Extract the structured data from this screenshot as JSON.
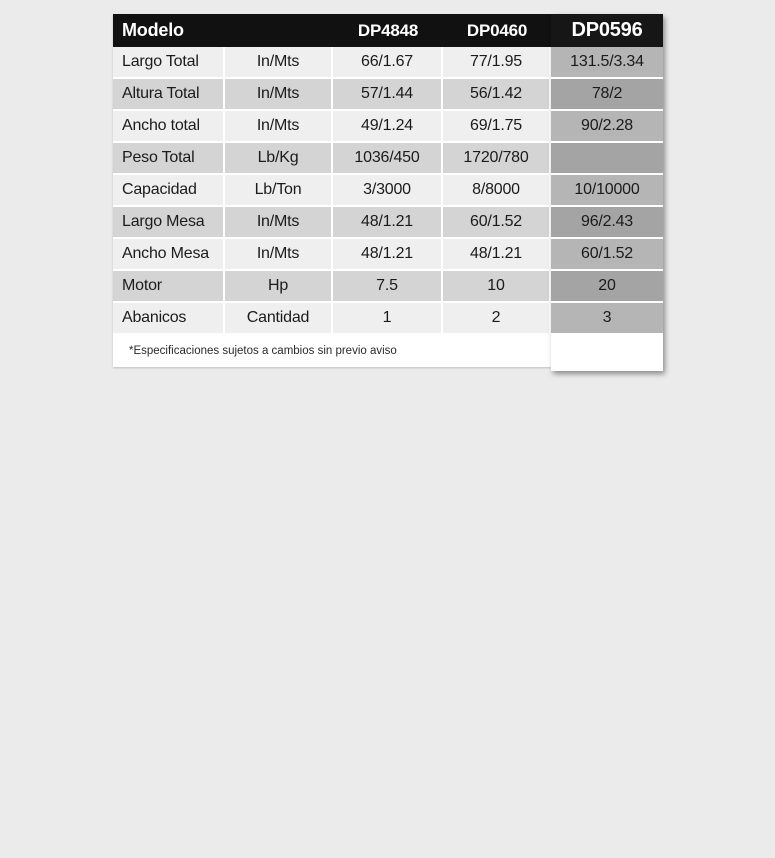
{
  "page": {
    "background_color": "#ebebeb"
  },
  "table": {
    "header": {
      "model_label": "Modelo",
      "col_dp4848": "DP4848",
      "col_dp0460": "DP0460",
      "col_dp0596": "DP0596"
    },
    "rows": [
      {
        "label": "Largo Total",
        "unit": "In/Mts",
        "dp4848": "66/1.67",
        "dp0460": "77/1.95",
        "dp0596": "131.5/3.34"
      },
      {
        "label": "Altura Total",
        "unit": "In/Mts",
        "dp4848": "57/1.44",
        "dp0460": "56/1.42",
        "dp0596": "78/2"
      },
      {
        "label": "Ancho total",
        "unit": "In/Mts",
        "dp4848": "49/1.24",
        "dp0460": "69/1.75",
        "dp0596": "90/2.28"
      },
      {
        "label": "Peso Total",
        "unit": "Lb/Kg",
        "dp4848": "1036/450",
        "dp0460": "1720/780",
        "dp0596": ""
      },
      {
        "label": "Capacidad",
        "unit": "Lb/Ton",
        "dp4848": "3/3000",
        "dp0460": "8/8000",
        "dp0596": "10/10000"
      },
      {
        "label": "Largo Mesa",
        "unit": "In/Mts",
        "dp4848": "48/1.21",
        "dp0460": "60/1.52",
        "dp0596": "96/2.43"
      },
      {
        "label": "Ancho Mesa",
        "unit": "In/Mts",
        "dp4848": "48/1.21",
        "dp0460": "48/1.21",
        "dp0596": "60/1.52"
      },
      {
        "label": "Motor",
        "unit": "Hp",
        "dp4848": "7.5",
        "dp0460": "10",
        "dp0596": "20"
      },
      {
        "label": "Abanicos",
        "unit": "Cantidad",
        "dp4848": "1",
        "dp0460": "2",
        "dp0596": "3"
      }
    ],
    "footnote": "*Especificaciones sujetos a cambios sin previo aviso",
    "colors": {
      "header_bg": "#111111",
      "highlight_header_bg": "#161616",
      "row_light": "#efefef",
      "row_dark": "#d4d4d4",
      "highlight_light": "#b5b5b5",
      "highlight_dark": "#a4a4a4",
      "footer_bg": "#ffffff",
      "text": "#1b1b1b"
    }
  }
}
